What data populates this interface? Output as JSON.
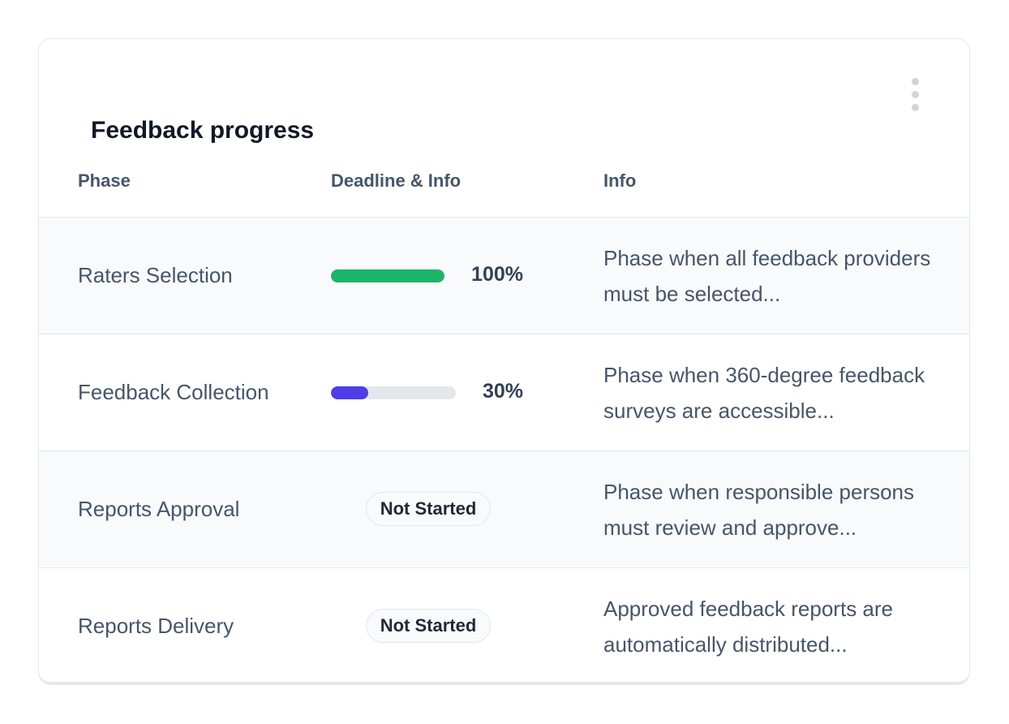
{
  "card": {
    "title": "Feedback progress",
    "menu_icon": "kebab-vertical-icon"
  },
  "columns": [
    "Phase",
    "Deadline & Info",
    "Info"
  ],
  "colors": {
    "complete": "#1db36a",
    "in_progress": "#4f3ee6",
    "track": "#e5e7eb"
  },
  "rows": [
    {
      "phase": "Raters Selection",
      "progress": 100,
      "progress_label": "100%",
      "info": "Phase when all feedback providers must be selected..."
    },
    {
      "phase": "Feedback Collection",
      "progress": 30,
      "progress_label": "30%",
      "info": "Phase when 360-degree feedback surveys are accessible..."
    },
    {
      "phase": "Reports Approval",
      "status": "Not Started",
      "info": "Phase when responsible persons must review and approve..."
    },
    {
      "phase": "Reports Delivery",
      "status": "Not Started",
      "info": "Approved feedback reports are automatically distributed..."
    }
  ]
}
